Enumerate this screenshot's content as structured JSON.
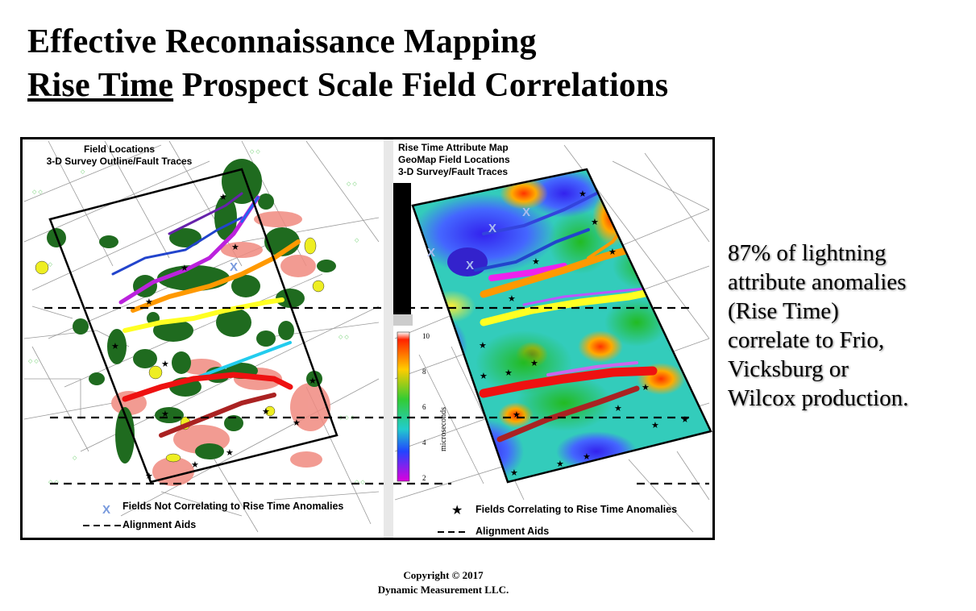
{
  "title": {
    "line1": "Effective Reconnaissance Mapping",
    "line2_underlined": "Rise Time",
    "line2_rest": "Prospect Scale Field Correlations"
  },
  "left_panel": {
    "label_line1": "Field Locations",
    "label_line2": "3-D Survey Outline/Fault Traces",
    "legend_x_marker": "X",
    "legend_x_text": "Fields Not Correlating to Rise Time Anomalies",
    "legend_alignment_text": "Alignment Aids"
  },
  "right_panel": {
    "label_line1": "Rise Time Attribute Map",
    "label_line2": "GeoMap Field Locations",
    "label_line3": "3-D Survey/Fault Traces",
    "scale_ticks": [
      "10",
      "8",
      "6",
      "4",
      "2"
    ],
    "scale_unit": "microseconds",
    "legend_star_marker": "★",
    "legend_star_text": "Fields Correlating to Rise Time Anomalies",
    "legend_alignment_text": "Alignment Aids"
  },
  "side_note": {
    "line1": "87% of lightning",
    "line2": "attribute anomalies",
    "line3": "(Rise Time)",
    "line4": "correlate to  Frio,",
    "line5": "Vicksburg or",
    "line6": "Wilcox  production."
  },
  "footer": {
    "copyright": "Copyright  © 2017",
    "company": "Dynamic Measurement LLC."
  },
  "colors": {
    "field_green": "#1f6b1f",
    "anomaly_pink": "#f08a80",
    "fault_red": "#ee1111",
    "fault_orange": "#ff9900",
    "fault_yellow": "#ffff22",
    "fault_magenta": "#dd22dd",
    "fault_blue": "#2233cc",
    "fault_cyan": "#22ccee"
  }
}
